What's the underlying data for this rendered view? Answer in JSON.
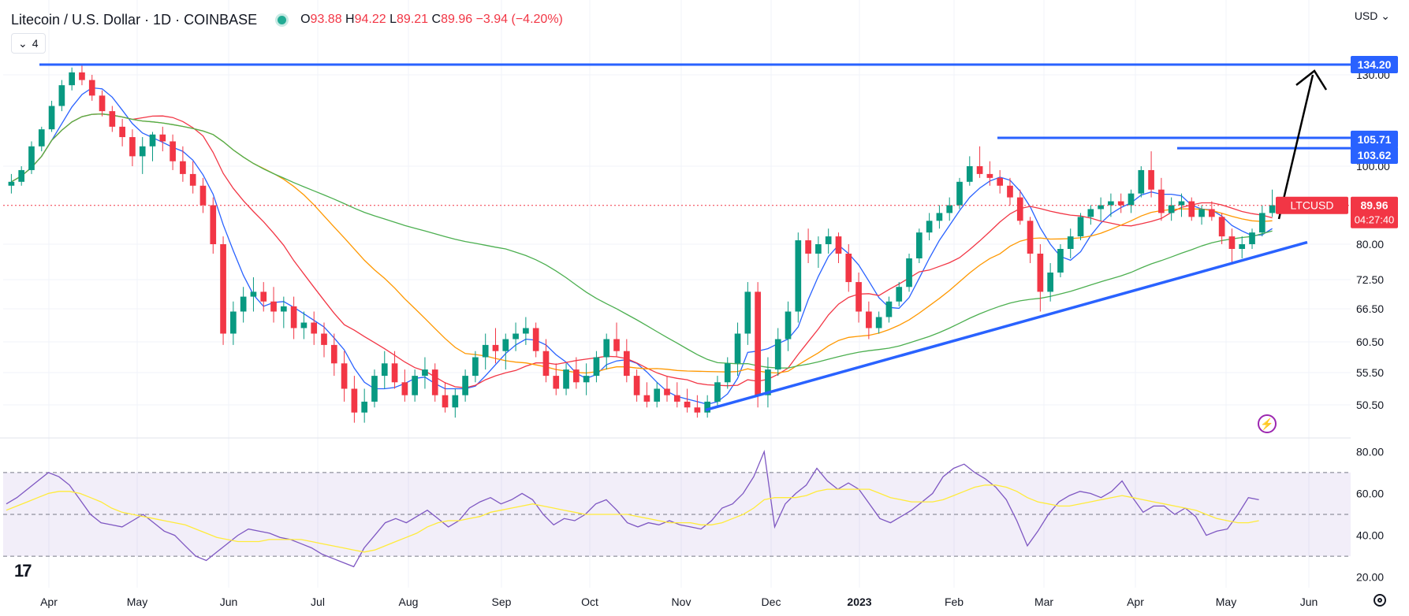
{
  "header": {
    "title": "Litecoin / U.S. Dollar · 1D · COINBASE",
    "open_label": "O",
    "open": "93.88",
    "high_label": "H",
    "high": "94.22",
    "low_label": "L",
    "low": "89.21",
    "close_label": "C",
    "close": "89.96",
    "change": "−3.94 (−4.20%)",
    "indicator_count": "4",
    "currency": "USD"
  },
  "colors": {
    "up": "#089981",
    "down": "#f23645",
    "sma20": "#2962ff",
    "sma50": "#f23645",
    "sma100": "#ff9800",
    "sma200": "#4caf50",
    "level_lines": "#2962ff",
    "rsi_line": "#7e57c2",
    "rsi_ma": "#ffeb3b"
  },
  "icons": {
    "logo": "tradingview-logo-icon",
    "settings": "gear-icon",
    "alert": "lightning-icon",
    "dropdown": "chevron-down-icon"
  },
  "chart_data": {
    "type": "candlestick",
    "symbol": "LTCUSD",
    "price_axis_ticks": [
      "130.00",
      "100.00",
      "80.00",
      "72.50",
      "66.50",
      "60.50",
      "55.50",
      "50.50"
    ],
    "rsi_axis_ticks": [
      "80.00",
      "60.00",
      "40.00",
      "20.00"
    ],
    "time_axis_labels": [
      "Apr",
      "May",
      "Jun",
      "Jul",
      "Aug",
      "Sep",
      "Oct",
      "Nov",
      "Dec",
      "2023",
      "Feb",
      "Mar",
      "Apr",
      "May",
      "Jun"
    ],
    "price_labels": {
      "resistance_top": "134.20",
      "resistance_1": "105.71",
      "resistance_2": "103.62",
      "last_price_symbol": "LTCUSD",
      "last_price": "89.96",
      "countdown": "04:27:40"
    },
    "levels": [
      134.2,
      105.71,
      103.62
    ],
    "last_price_value": 89.96,
    "trendline": {
      "start_value": 49.5,
      "end_value": 80.5
    },
    "rsi_bands": [
      70,
      50,
      30
    ],
    "ohlc": [
      [
        95,
        98,
        93,
        96
      ],
      [
        96,
        100,
        95,
        99
      ],
      [
        99,
        105,
        98,
        104
      ],
      [
        104,
        110,
        103,
        109
      ],
      [
        109,
        120,
        108,
        118
      ],
      [
        118,
        128,
        116,
        126
      ],
      [
        126,
        133,
        124,
        131
      ],
      [
        131,
        134,
        126,
        128
      ],
      [
        128,
        130,
        120,
        122
      ],
      [
        122,
        124,
        114,
        116
      ],
      [
        116,
        118,
        108,
        110
      ],
      [
        110,
        113,
        104,
        106
      ],
      [
        106,
        109,
        100,
        102
      ],
      [
        102,
        106,
        98,
        104
      ],
      [
        104,
        108,
        101,
        107
      ],
      [
        107,
        110,
        103,
        105
      ],
      [
        105,
        107,
        99,
        101
      ],
      [
        101,
        104,
        96,
        98
      ],
      [
        98,
        101,
        93,
        95
      ],
      [
        95,
        97,
        88,
        90
      ],
      [
        90,
        92,
        78,
        80
      ],
      [
        80,
        82,
        60,
        62
      ],
      [
        62,
        68,
        60,
        66
      ],
      [
        66,
        71,
        64,
        69
      ],
      [
        69,
        73,
        66,
        70
      ],
      [
        70,
        72,
        66,
        68
      ],
      [
        68,
        71,
        64,
        66
      ],
      [
        66,
        69,
        63,
        67
      ],
      [
        67,
        69,
        61,
        63
      ],
      [
        63,
        66,
        61,
        64
      ],
      [
        64,
        66,
        60,
        62
      ],
      [
        62,
        64,
        58,
        60
      ],
      [
        60,
        62,
        55,
        57
      ],
      [
        57,
        59,
        51,
        53
      ],
      [
        53,
        55,
        47,
        49
      ],
      [
        49,
        53,
        47,
        51
      ],
      [
        51,
        56,
        50,
        55
      ],
      [
        55,
        59,
        53,
        57
      ],
      [
        57,
        59,
        53,
        54
      ],
      [
        54,
        56,
        51,
        52
      ],
      [
        52,
        56,
        51,
        55
      ],
      [
        55,
        58,
        53,
        56
      ],
      [
        56,
        57,
        51,
        52
      ],
      [
        52,
        54,
        49,
        50
      ],
      [
        50,
        53,
        48,
        52
      ],
      [
        52,
        56,
        51,
        55
      ],
      [
        55,
        59,
        54,
        58
      ],
      [
        58,
        62,
        56,
        60
      ],
      [
        60,
        63,
        57,
        59
      ],
      [
        59,
        62,
        56,
        61
      ],
      [
        61,
        64,
        59,
        62
      ],
      [
        62,
        65,
        60,
        63
      ],
      [
        63,
        64,
        58,
        59
      ],
      [
        59,
        61,
        54,
        55
      ],
      [
        55,
        57,
        52,
        53
      ],
      [
        53,
        57,
        52,
        56
      ],
      [
        56,
        58,
        53,
        54
      ],
      [
        54,
        57,
        52,
        55
      ],
      [
        55,
        59,
        54,
        58
      ],
      [
        58,
        62,
        56,
        61
      ],
      [
        61,
        64,
        58,
        59
      ],
      [
        59,
        61,
        54,
        55
      ],
      [
        55,
        56,
        51,
        52
      ],
      [
        52,
        54,
        50,
        51
      ],
      [
        51,
        54,
        50,
        53
      ],
      [
        53,
        55,
        51,
        52
      ],
      [
        52,
        54,
        50,
        51
      ],
      [
        51,
        53,
        49,
        50
      ],
      [
        50,
        52,
        48,
        49
      ],
      [
        49,
        52,
        48,
        51
      ],
      [
        51,
        55,
        50,
        54
      ],
      [
        54,
        58,
        53,
        57
      ],
      [
        57,
        64,
        55,
        62
      ],
      [
        62,
        72,
        60,
        70
      ],
      [
        70,
        72,
        50,
        52
      ],
      [
        52,
        58,
        50,
        56
      ],
      [
        56,
        63,
        55,
        61
      ],
      [
        61,
        68,
        59,
        66
      ],
      [
        66,
        83,
        64,
        81
      ],
      [
        81,
        84,
        76,
        78
      ],
      [
        78,
        82,
        75,
        80
      ],
      [
        80,
        84,
        78,
        82
      ],
      [
        82,
        83,
        76,
        78
      ],
      [
        78,
        80,
        70,
        72
      ],
      [
        72,
        74,
        64,
        66
      ],
      [
        66,
        68,
        61,
        63
      ],
      [
        63,
        66,
        62,
        65
      ],
      [
        65,
        69,
        64,
        68
      ],
      [
        68,
        72,
        67,
        71
      ],
      [
        71,
        78,
        70,
        77
      ],
      [
        77,
        84,
        76,
        83
      ],
      [
        83,
        88,
        81,
        86
      ],
      [
        86,
        90,
        84,
        88
      ],
      [
        88,
        92,
        86,
        90
      ],
      [
        90,
        97,
        89,
        96
      ],
      [
        96,
        102,
        95,
        100
      ],
      [
        100,
        104,
        97,
        98
      ],
      [
        98,
        101,
        95,
        97
      ],
      [
        97,
        99,
        93,
        95
      ],
      [
        95,
        97,
        90,
        92
      ],
      [
        92,
        94,
        85,
        86
      ],
      [
        86,
        87,
        76,
        78
      ],
      [
        78,
        80,
        66,
        70
      ],
      [
        70,
        76,
        68,
        74
      ],
      [
        74,
        80,
        73,
        79
      ],
      [
        79,
        84,
        77,
        82
      ],
      [
        82,
        88,
        81,
        87
      ],
      [
        87,
        90,
        85,
        89
      ],
      [
        89,
        92,
        86,
        90
      ],
      [
        90,
        93,
        87,
        91
      ],
      [
        91,
        93,
        88,
        90
      ],
      [
        90,
        94,
        88,
        93
      ],
      [
        93,
        100,
        92,
        99
      ],
      [
        99,
        103,
        92,
        94
      ],
      [
        94,
        97,
        86,
        88
      ],
      [
        88,
        92,
        86,
        90
      ],
      [
        90,
        93,
        87,
        91
      ],
      [
        91,
        92,
        86,
        87
      ],
      [
        87,
        90,
        85,
        89
      ],
      [
        89,
        91,
        86,
        87
      ],
      [
        87,
        88,
        80,
        82
      ],
      [
        82,
        84,
        76,
        79
      ],
      [
        79,
        82,
        77,
        80
      ],
      [
        80,
        84,
        79,
        83
      ],
      [
        83,
        90,
        82,
        88
      ],
      [
        88,
        94,
        87,
        90
      ]
    ],
    "rsi_values": [
      55,
      58,
      62,
      66,
      70,
      68,
      64,
      57,
      50,
      46,
      45,
      44,
      47,
      50,
      46,
      42,
      40,
      35,
      30,
      28,
      32,
      36,
      40,
      43,
      42,
      41,
      39,
      38,
      36,
      34,
      31,
      29,
      27,
      25,
      34,
      40,
      46,
      48,
      46,
      49,
      52,
      48,
      44,
      47,
      53,
      56,
      58,
      55,
      57,
      60,
      57,
      50,
      45,
      48,
      47,
      50,
      55,
      57,
      52,
      46,
      44,
      46,
      45,
      47,
      45,
      44,
      43,
      47,
      53,
      55,
      60,
      68,
      80,
      44,
      55,
      60,
      64,
      72,
      66,
      62,
      65,
      62,
      55,
      48,
      46,
      49,
      52,
      56,
      60,
      68,
      72,
      74,
      70,
      67,
      63,
      57,
      47,
      35,
      42,
      50,
      56,
      59,
      61,
      60,
      58,
      61,
      66,
      58,
      51,
      54,
      54,
      50,
      53,
      49,
      40,
      42,
      43,
      50,
      58,
      57
    ],
    "rsi_ma_values": [
      52,
      54,
      56,
      58,
      60,
      61,
      61,
      60,
      58,
      56,
      53,
      51,
      50,
      49,
      48,
      47,
      46,
      45,
      43,
      41,
      39,
      38,
      37,
      37,
      37,
      38,
      38,
      38,
      38,
      37,
      36,
      35,
      34,
      33,
      32,
      33,
      35,
      37,
      39,
      41,
      44,
      46,
      47,
      47,
      48,
      49,
      51,
      52,
      53,
      54,
      55,
      54,
      53,
      52,
      51,
      50,
      50,
      50,
      50,
      50,
      49,
      48,
      47,
      46,
      46,
      46,
      45,
      45,
      46,
      48,
      50,
      53,
      57,
      58,
      58,
      58,
      59,
      61,
      62,
      62,
      62,
      62,
      62,
      60,
      58,
      57,
      56,
      56,
      56,
      57,
      59,
      61,
      63,
      64,
      64,
      63,
      61,
      58,
      56,
      55,
      54,
      54,
      55,
      56,
      57,
      58,
      59,
      58,
      57,
      56,
      55,
      54,
      53,
      52,
      50,
      48,
      47,
      46,
      46,
      47
    ]
  }
}
